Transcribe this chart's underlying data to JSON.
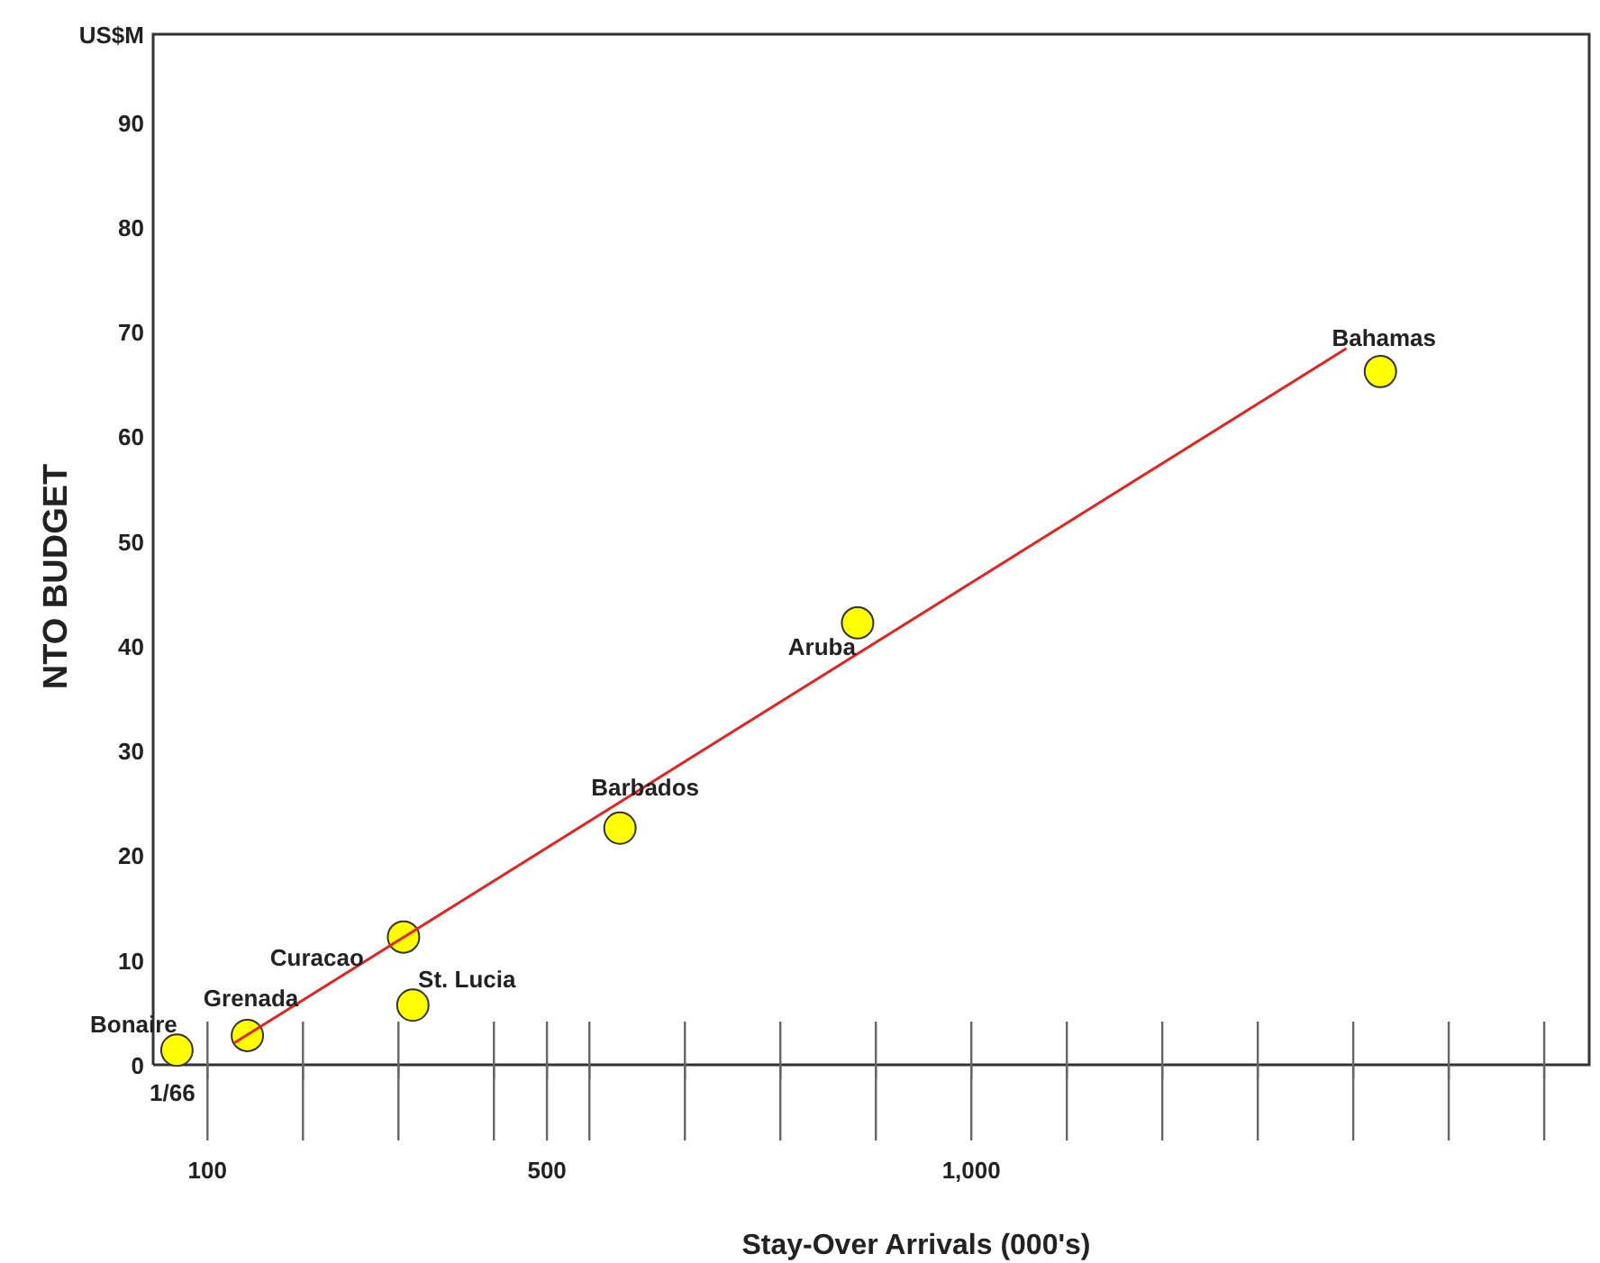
{
  "chart_data": {
    "type": "scatter",
    "xlabel": "Stay-Over Arrivals (000's)",
    "ylabel": "NTO BUDGET",
    "xlim": [
      36,
      1728
    ],
    "ylim": [
      0,
      98.4
    ],
    "xticks": [
      {
        "value": 100,
        "label": "100"
      },
      {
        "value": 212.5,
        "label": null
      },
      {
        "value": 325,
        "label": null
      },
      {
        "value": 437.5,
        "label": null
      },
      {
        "value": 500,
        "label": "500"
      },
      {
        "value": 550,
        "label": null
      },
      {
        "value": 662.5,
        "label": null
      },
      {
        "value": 775,
        "label": null
      },
      {
        "value": 887.5,
        "label": null
      },
      {
        "value": 1000,
        "label": "1,000"
      },
      {
        "value": 1112.5,
        "label": null
      },
      {
        "value": 1225,
        "label": null
      },
      {
        "value": 1337.5,
        "label": null
      },
      {
        "value": 1450,
        "label": null
      },
      {
        "value": 1562.5,
        "label": null
      },
      {
        "value": 1675,
        "label": null
      }
    ],
    "yticks": [
      0,
      10,
      20,
      30,
      40,
      50,
      60,
      70,
      80,
      90
    ],
    "grid": false,
    "marker": "circle",
    "series": [
      {
        "type": "line",
        "marker": "none",
        "color": "#e52222",
        "x": [
          132,
          1442
        ],
        "values": [
          2.1,
          68.4
        ]
      },
      {
        "color": "#ffff00",
        "x": [
          64,
          147,
          331,
          342,
          586,
          866,
          1482
        ],
        "values": [
          1.4,
          2.8,
          12.2,
          5.7,
          22.6,
          42.2,
          66.2
        ]
      }
    ],
    "annotations": [
      "US$M",
      "1/66",
      {
        "text": "Bonaire",
        "x": 64,
        "y": 1.4
      },
      {
        "text": "Grenada",
        "x": 147,
        "y": 2.8
      },
      {
        "text": "Curacao",
        "x": 331,
        "y": 12.2
      },
      {
        "text": "St. Lucia",
        "x": 342,
        "y": 5.7
      },
      {
        "text": "Barbados",
        "x": 586,
        "y": 22.6
      },
      {
        "text": "Aruba",
        "x": 866,
        "y": 42.2
      },
      {
        "text": "Bahamas",
        "x": 1482,
        "y": 66.2
      }
    ]
  }
}
